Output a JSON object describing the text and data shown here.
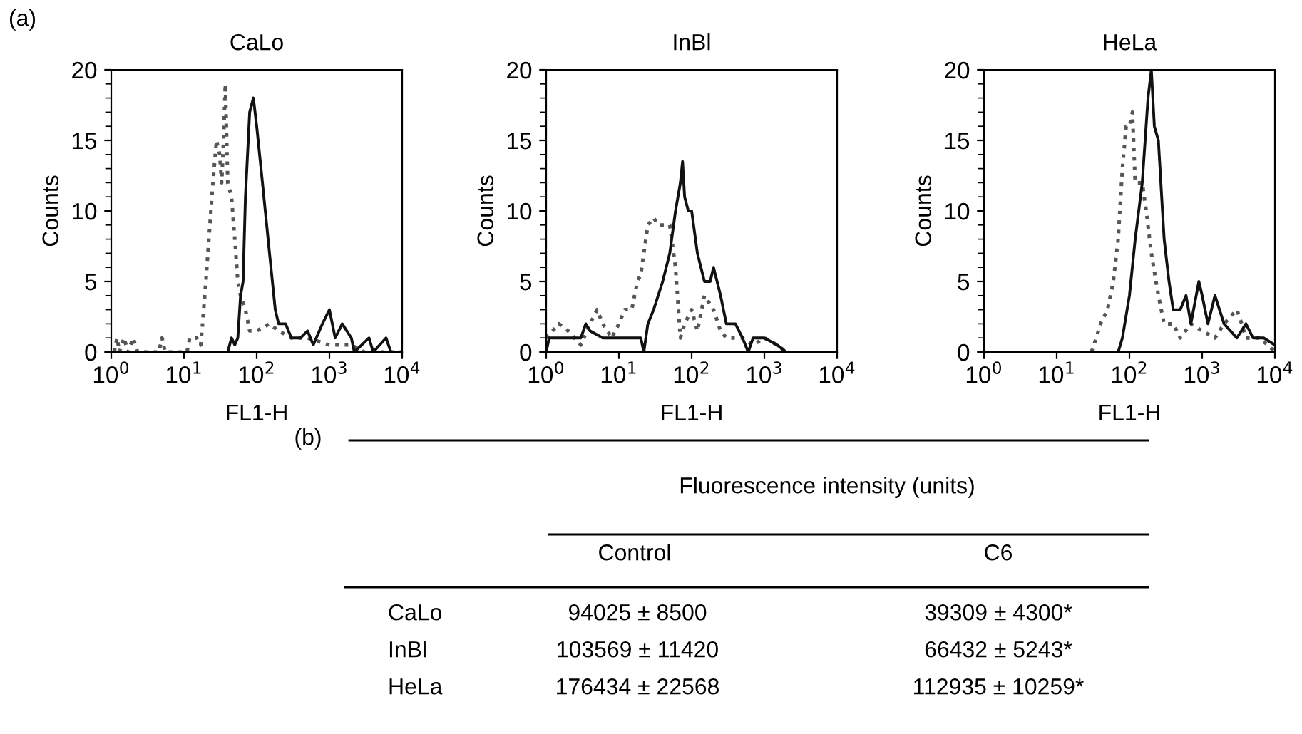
{
  "chart_data": [
    {
      "type": "line",
      "title": "CaLo",
      "xlabel": "FL1-H",
      "ylabel": "Counts",
      "log": "x",
      "xlim": [
        1,
        10000
      ],
      "ylim": [
        0,
        20
      ],
      "yticks": [
        0,
        5,
        10,
        15,
        20
      ],
      "xticks": [
        {
          "value": 1,
          "label": "10$^{0}$"
        },
        {
          "value": 10,
          "label": "10$^{1}$"
        },
        {
          "value": 100,
          "label": "10$^{2}$"
        },
        {
          "value": 1000,
          "label": "10$^{3}$"
        },
        {
          "value": 10000,
          "label": "10$^{4}$"
        }
      ],
      "annotations": [
        "(a)"
      ],
      "series": [
        {
          "color": "#555555",
          "line_style": "dotted",
          "x": [
            1.1,
            1.2,
            1.3,
            1.5,
            1.7,
            2,
            2.3,
            4.5,
            5,
            5.5,
            11,
            12,
            15,
            17,
            18,
            20,
            22,
            25,
            28,
            31,
            33,
            35,
            37,
            40,
            45,
            50,
            55,
            60,
            70,
            80,
            100,
            150,
            200,
            300,
            500,
            1000,
            2000,
            3000,
            10000
          ],
          "values": [
            0,
            1,
            0,
            1,
            0,
            1,
            0,
            0,
            1,
            0,
            0,
            1,
            1,
            0.5,
            2,
            5,
            8,
            12,
            15,
            14,
            12,
            15,
            19,
            12,
            11,
            8,
            5,
            4,
            3,
            1.5,
            1.5,
            2,
            1.5,
            1,
            1,
            0.5,
            0.5,
            0,
            0
          ]
        },
        {
          "color": "#111111",
          "line_style": "solid",
          "x": [
            40,
            45,
            50,
            55,
            60,
            65,
            70,
            80,
            90,
            100,
            120,
            150,
            180,
            200,
            250,
            300,
            400,
            500,
            600,
            800,
            1000,
            1200,
            1500,
            2000,
            2200,
            3500,
            4000,
            6000,
            7000,
            10000
          ],
          "values": [
            0,
            1,
            0.5,
            1,
            4,
            5,
            11,
            17,
            18,
            16,
            12,
            7,
            3,
            2,
            2,
            1,
            1,
            1.5,
            0.5,
            2,
            3,
            1,
            2,
            1,
            0,
            1,
            0,
            1,
            0,
            0
          ]
        }
      ]
    },
    {
      "type": "line",
      "title": "InBl",
      "xlabel": "FL1-H",
      "ylabel": "Counts",
      "log": "x",
      "xlim": [
        1,
        10000
      ],
      "ylim": [
        0,
        20
      ],
      "yticks": [
        0,
        5,
        10,
        15,
        20
      ],
      "xticks": [
        {
          "value": 1,
          "label": "10$^{0}$"
        },
        {
          "value": 10,
          "label": "10$^{1}$"
        },
        {
          "value": 100,
          "label": "10$^{2}$"
        },
        {
          "value": 1000,
          "label": "10$^{3}$"
        },
        {
          "value": 10000,
          "label": "10$^{4}$"
        }
      ],
      "series": [
        {
          "color": "#555555",
          "line_style": "dotted",
          "x": [
            1,
            1.5,
            2,
            3,
            4,
            5,
            6,
            8,
            10,
            12,
            15,
            18,
            20,
            25,
            30,
            35,
            40,
            50,
            60,
            70,
            80,
            100,
            120,
            150,
            200,
            250,
            300,
            400,
            500,
            700,
            1000,
            1500,
            2000
          ],
          "values": [
            1,
            2,
            1.5,
            0.5,
            2,
            3,
            2,
            1,
            2,
            3,
            3,
            5,
            5.5,
            9,
            9.5,
            9,
            9,
            9,
            6,
            1,
            2,
            3,
            1.5,
            4,
            3,
            1.5,
            1,
            1,
            1,
            0.5,
            1,
            0.5,
            0
          ]
        },
        {
          "color": "#111111",
          "line_style": "solid",
          "x": [
            1,
            1.1,
            1.5,
            3,
            3.5,
            4,
            6,
            10,
            15,
            20,
            22,
            25,
            30,
            40,
            50,
            60,
            70,
            75,
            80,
            90,
            100,
            120,
            150,
            180,
            200,
            250,
            300,
            400,
            500,
            600,
            700,
            1000,
            1500,
            2000
          ],
          "values": [
            0,
            1,
            1,
            1,
            2,
            1.5,
            1,
            1,
            1,
            1,
            0,
            2,
            3,
            5,
            7,
            10,
            12,
            13.5,
            11,
            10,
            10,
            7,
            5,
            5,
            6,
            4,
            2,
            2,
            1,
            0,
            1,
            1,
            0.5,
            0
          ]
        }
      ]
    },
    {
      "type": "line",
      "title": "HeLa",
      "xlabel": "FL1-H",
      "ylabel": "Counts",
      "log": "x",
      "xlim": [
        1,
        10000
      ],
      "ylim": [
        0,
        20
      ],
      "yticks": [
        0,
        5,
        10,
        15,
        20
      ],
      "xticks": [
        {
          "value": 1,
          "label": "10$^{0}$"
        },
        {
          "value": 10,
          "label": "10$^{1}$"
        },
        {
          "value": 100,
          "label": "10$^{2}$"
        },
        {
          "value": 1000,
          "label": "10$^{3}$"
        },
        {
          "value": 10000,
          "label": "10$^{4}$"
        }
      ],
      "series": [
        {
          "color": "#555555",
          "line_style": "dotted",
          "x": [
            30,
            35,
            40,
            50,
            60,
            70,
            80,
            90,
            100,
            110,
            120,
            150,
            170,
            200,
            250,
            300,
            400,
            500,
            700,
            1000,
            1500,
            2000,
            3000,
            3500,
            4000,
            6000,
            8000,
            10000
          ],
          "values": [
            0,
            1,
            2,
            3,
            5,
            8,
            13,
            16,
            16,
            17,
            12,
            12,
            10,
            7,
            4,
            2,
            2,
            1,
            2,
            1.5,
            1,
            2,
            3,
            2,
            1,
            1,
            0.5,
            0
          ]
        },
        {
          "color": "#111111",
          "line_style": "solid",
          "x": [
            70,
            80,
            100,
            120,
            150,
            180,
            200,
            220,
            250,
            300,
            350,
            400,
            500,
            600,
            700,
            900,
            1000,
            1200,
            1500,
            2000,
            3000,
            4000,
            5000,
            7000,
            10000
          ],
          "values": [
            0,
            1,
            4,
            8,
            12,
            18,
            20,
            16,
            15,
            8,
            5,
            3,
            3,
            4,
            2,
            5,
            4,
            2,
            4,
            2,
            1,
            2,
            1,
            1,
            0.5
          ]
        }
      ]
    },
    {
      "type": "other",
      "annotations": [
        "(b)",
        "Fluorescence intensity (units)",
        "Control",
        "C6",
        "CaLo",
        "94025 ± 8500",
        "39309 ± 4300*",
        "InBl",
        "103569 ± 11420",
        "66432 ± 5243*",
        "HeLa",
        "176434 ± 22568",
        "112935 ± 10259*"
      ]
    }
  ]
}
